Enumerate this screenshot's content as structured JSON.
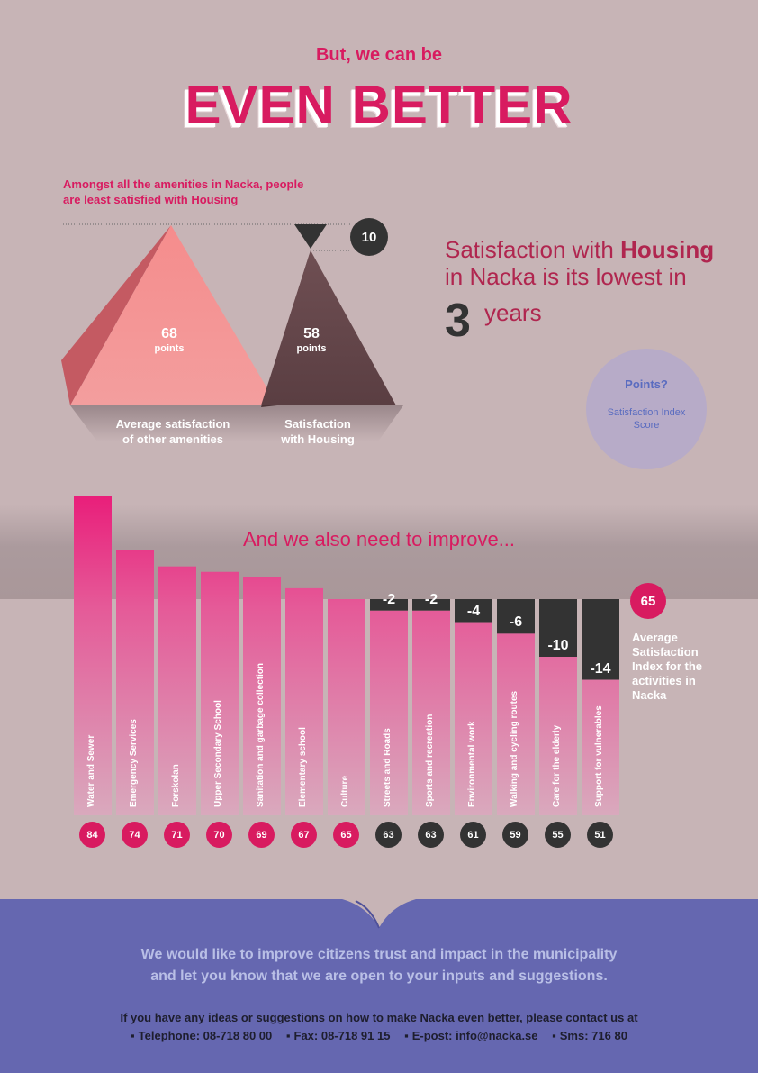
{
  "header": {
    "subtitle": "But, we can be",
    "headline": "EVEN BETTER"
  },
  "intro": {
    "line1": "Amongst all the amenities in Nacka, people",
    "line2": "are least satisfied with Housing"
  },
  "pyramids": {
    "other": {
      "value": "68",
      "unit": "points",
      "label_line1": "Average satisfaction",
      "label_line2": "of other amenities"
    },
    "housing": {
      "value": "58",
      "unit": "points",
      "label_line1": "Satisfaction",
      "label_line2": "with Housing"
    },
    "difference": "10"
  },
  "statement": {
    "line1_pre": "Satisfaction with ",
    "line1_bold": "Housing",
    "line2": "in Nacka is its lowest in",
    "number": "3",
    "unit": "years"
  },
  "points_info": {
    "title": "Points?",
    "line1": "Satisfaction Index",
    "line2": "Score"
  },
  "improve_title": "And we also need to improve...",
  "average": {
    "value": "65",
    "line1": "Average",
    "line2": "Satisfaction",
    "line3": "Index for the",
    "line4": "activities in",
    "line5": "Nacka"
  },
  "colors": {
    "accent": "#d81b60",
    "dark": "#333333",
    "background": "#c7b4b6",
    "footer": "#6567b0"
  },
  "chart_data": {
    "type": "bar",
    "baseline": 65,
    "categories": [
      "Water and Sewer",
      "Emergency Services",
      "Forskolan",
      "Upper Secondary School",
      "Sanitation and garbage collection",
      "Elementary school",
      "Culture",
      "Streets and Roads",
      "Sports and recreation",
      "Environmental work",
      "Walking and cycling routes",
      "Care for the elderly",
      "Support for vulnerables"
    ],
    "values": [
      84,
      74,
      71,
      70,
      69,
      67,
      65,
      63,
      63,
      61,
      59,
      55,
      51
    ],
    "deltas": [
      "",
      "",
      "",
      "",
      "",
      "",
      "",
      "-2",
      "-2",
      "-4",
      "-6",
      "-10",
      "-14"
    ]
  },
  "footer": {
    "message_line1": "We would like to improve citizens trust and impact in the municipality",
    "message_line2": "and let you know that we are open to your inputs and suggestions.",
    "contact_line": "If you have any ideas or suggestions on how to make Nacka even better, please contact us at",
    "telephone": "Telephone: 08-718 80 00",
    "fax": "Fax: 08-718 91 15",
    "email": "E-post: info@nacka.se",
    "sms": "Sms: 716 80"
  }
}
